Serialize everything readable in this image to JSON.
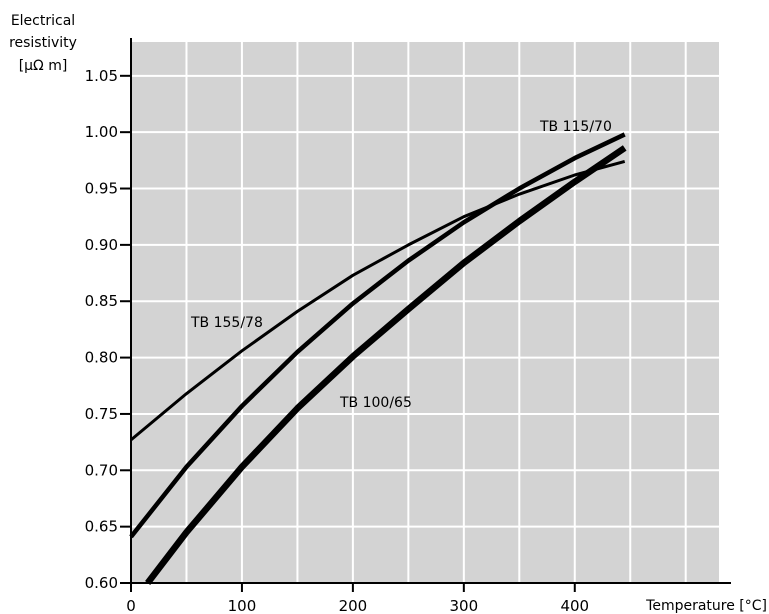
{
  "chart_data": {
    "type": "line",
    "ylabel_lines": [
      "Electrical",
      "resistivity",
      "[µΩ m]"
    ],
    "xlabel": "Temperature [°C]",
    "xlim": [
      0,
      530
    ],
    "ylim": [
      0.6,
      1.08
    ],
    "x_ticks": [
      0,
      100,
      200,
      300,
      400
    ],
    "x_tick_labels": [
      "0",
      "100",
      "200",
      "300",
      "400"
    ],
    "x_grid": [
      0,
      50,
      100,
      150,
      200,
      250,
      300,
      350,
      400,
      450,
      500
    ],
    "y_ticks": [
      0.6,
      0.65,
      0.7,
      0.75,
      0.8,
      0.85,
      0.9,
      0.95,
      1.0,
      1.05
    ],
    "y_tick_labels": [
      "0.60",
      "0.65",
      "0.70",
      "0.75",
      "0.80",
      "0.85",
      "0.90",
      "0.95",
      "1.00",
      "1.05"
    ],
    "grid": true,
    "background": "#d3d3d3",
    "series": [
      {
        "name": "TB 155/78",
        "x": [
          0,
          50,
          100,
          150,
          200,
          250,
          300,
          350,
          400,
          445
        ],
        "y": [
          0.727,
          0.768,
          0.806,
          0.841,
          0.873,
          0.9,
          0.925,
          0.945,
          0.962,
          0.974
        ]
      },
      {
        "name": "TB 115/70",
        "x": [
          0,
          50,
          100,
          150,
          200,
          250,
          300,
          350,
          400,
          445
        ],
        "y": [
          0.641,
          0.703,
          0.757,
          0.805,
          0.848,
          0.886,
          0.92,
          0.95,
          0.977,
          0.998
        ]
      },
      {
        "name": "TB 100/65",
        "x": [
          15,
          50,
          100,
          150,
          200,
          250,
          300,
          350,
          400,
          445
        ],
        "y": [
          0.6,
          0.645,
          0.703,
          0.755,
          0.801,
          0.843,
          0.884,
          0.921,
          0.956,
          0.986
        ]
      }
    ]
  }
}
